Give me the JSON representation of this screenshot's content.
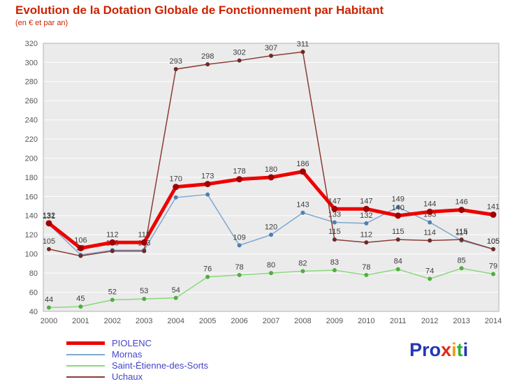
{
  "title": "Evolution de la Dotation Globale de Fonctionnement par Habitant",
  "subtitle": "(en € et par an)",
  "colors": {
    "title": "#cc2200",
    "legend_text": "#4545c8",
    "plot_bg": "#ebebeb",
    "grid": "#ffffff",
    "plot_border": "#b0b0b0",
    "axis_text": "#555555",
    "label_text": "#3d3d3d"
  },
  "legend": [
    {
      "label": "PIOLENC"
    },
    {
      "label": "Mornas"
    },
    {
      "label": "Saint-Étienne-des-Sorts"
    },
    {
      "label": "Uchaux"
    }
  ],
  "logo": {
    "text": "Proxiti",
    "letters": [
      {
        "ch": "P",
        "color": "#2636b4"
      },
      {
        "ch": "r",
        "color": "#2636b4"
      },
      {
        "ch": "o",
        "color": "#2636b4"
      },
      {
        "ch": "x",
        "color": "#e02818"
      },
      {
        "ch": "i",
        "color": "#f59b00"
      },
      {
        "ch": "t",
        "color": "#2fae3e"
      },
      {
        "ch": "i",
        "color": "#2636b4"
      }
    ]
  },
  "chart_data": {
    "type": "line",
    "title": "Evolution de la Dotation Globale de Fonctionnement par Habitant",
    "subtitle": "(en € et par an)",
    "x": [
      2000,
      2001,
      2002,
      2003,
      2004,
      2005,
      2006,
      2007,
      2008,
      2009,
      2010,
      2011,
      2012,
      2013,
      2014
    ],
    "ylim": [
      40,
      320
    ],
    "ytick_step": 20,
    "grid": true,
    "legend_position": "bottom-left",
    "series": [
      {
        "name": "PIOLENC",
        "color": "#ee0000",
        "dot_color": "#a00000",
        "line_width": 5,
        "values": [
          132,
          106,
          112,
          112,
          170,
          173,
          178,
          180,
          186,
          147,
          147,
          140,
          144,
          146,
          141
        ],
        "labels": [
          "132",
          "106",
          "112",
          "112",
          "170",
          "173",
          "178",
          "180",
          "186",
          "147",
          "147",
          "140",
          "144",
          "146",
          "141"
        ]
      },
      {
        "name": "Mornas",
        "color": "#7fa8cf",
        "dot_color": "#4d7fb5",
        "line_width": 1.5,
        "values": [
          131,
          99,
          104,
          104,
          159,
          162,
          109,
          120,
          143,
          133,
          132,
          149,
          133,
          114,
          105
        ],
        "labels": [
          "131",
          null,
          null,
          null,
          null,
          null,
          "109",
          "120",
          "143",
          "133",
          "132",
          "149",
          "133",
          "114",
          "105"
        ]
      },
      {
        "name": "Saint-Étienne-des-Sorts",
        "color": "#8cd67e",
        "dot_color": "#4fae3f",
        "line_width": 1.5,
        "values": [
          44,
          45,
          52,
          53,
          54,
          76,
          78,
          80,
          82,
          83,
          78,
          84,
          74,
          85,
          79
        ],
        "labels": [
          "44",
          "45",
          "52",
          "53",
          "54",
          "76",
          "78",
          "80",
          "82",
          "83",
          "78",
          "84",
          "74",
          "85",
          "79"
        ]
      },
      {
        "name": "Uchaux",
        "color": "#8a3b36",
        "dot_color": "#6e2a26",
        "line_width": 1.5,
        "values": [
          105,
          98,
          103,
          103,
          293,
          298,
          302,
          307,
          311,
          115,
          112,
          115,
          114,
          115,
          105
        ],
        "labels": [
          "105",
          "98",
          "103",
          "103",
          "293",
          "298",
          "302",
          "307",
          "311",
          "115",
          "112",
          "115",
          "114",
          "115",
          "105"
        ]
      }
    ]
  }
}
